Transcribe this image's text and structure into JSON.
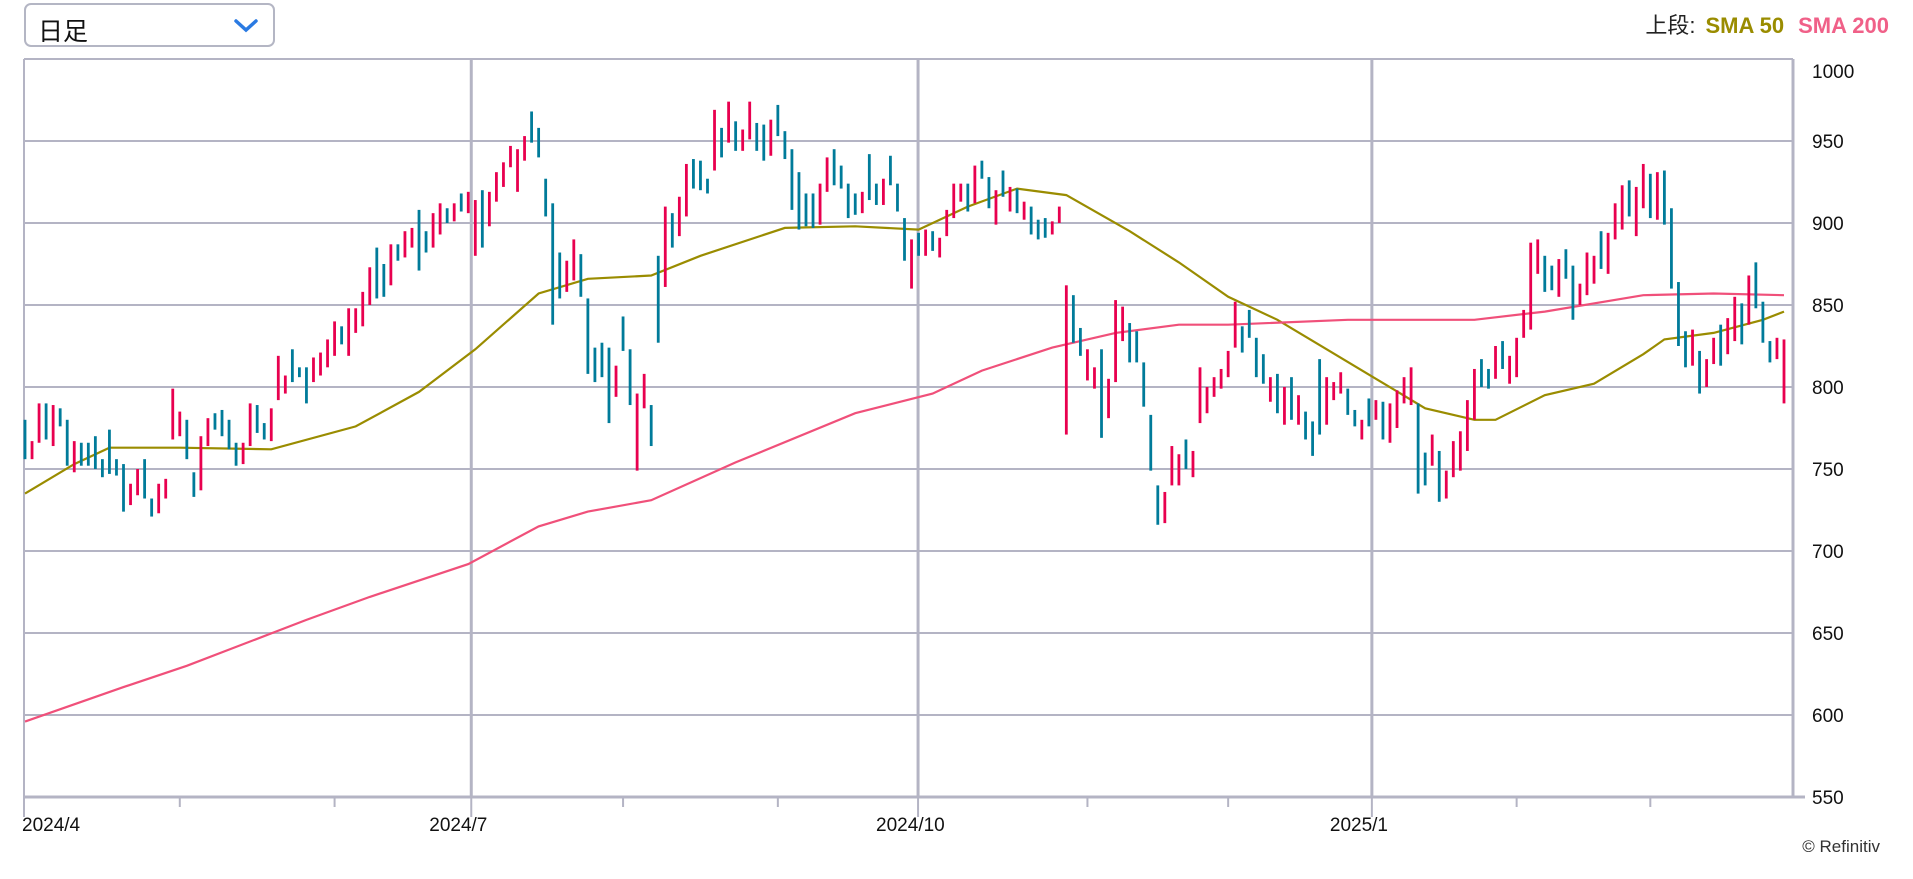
{
  "controls": {
    "period_select": "日足"
  },
  "legend": {
    "label": "上段:",
    "sma50": "SMA 50",
    "sma200": "SMA 200"
  },
  "credit": "© Refinitiv",
  "colors": {
    "up": "#e8004f",
    "down": "#007b9a",
    "sma50": "#9a8c00",
    "sma200": "#f0507a",
    "grid": "#b4b4c4"
  },
  "chart_data": {
    "type": "ohlc-range-bar",
    "ylim": [
      550,
      1000
    ],
    "yticks": [
      "1000",
      "950",
      "900",
      "850",
      "800",
      "750",
      "700",
      "650",
      "600",
      "550"
    ],
    "xticks": [
      {
        "label": "2024/4",
        "bar": 1
      },
      {
        "label": "2024/7",
        "bar": 64
      },
      {
        "label": "2024/10",
        "bar": 127.5
      },
      {
        "label": "2025/1",
        "bar": 192
      }
    ],
    "minor_ticks_bar": [
      23,
      45,
      86,
      108,
      152,
      172,
      213,
      232
    ],
    "bar_format": "[high, low, direction u=up d=down]",
    "bars": [
      [
        780,
        756,
        "d"
      ],
      [
        767,
        756,
        "u"
      ],
      [
        790,
        766,
        "u"
      ],
      [
        790,
        768,
        "d"
      ],
      [
        789,
        764,
        "u"
      ],
      [
        787,
        776,
        "d"
      ],
      [
        780,
        752,
        "d"
      ],
      [
        767,
        748,
        "u"
      ],
      [
        766,
        752,
        "d"
      ],
      [
        766,
        752,
        "d"
      ],
      [
        770,
        750,
        "d"
      ],
      [
        756,
        745,
        "d"
      ],
      [
        774,
        747,
        "d"
      ],
      [
        756,
        746,
        "d"
      ],
      [
        753,
        724,
        "d"
      ],
      [
        741,
        728,
        "u"
      ],
      [
        750,
        734,
        "u"
      ],
      [
        756,
        732,
        "d"
      ],
      [
        732,
        721,
        "d"
      ],
      [
        741,
        723,
        "u"
      ],
      [
        744,
        732,
        "u"
      ],
      [
        799,
        768,
        "u"
      ],
      [
        785,
        770,
        "u"
      ],
      [
        780,
        756,
        "d"
      ],
      [
        748,
        733,
        "d"
      ],
      [
        770,
        737,
        "u"
      ],
      [
        781,
        764,
        "u"
      ],
      [
        784,
        774,
        "d"
      ],
      [
        786,
        770,
        "d"
      ],
      [
        780,
        762,
        "d"
      ],
      [
        766,
        752,
        "d"
      ],
      [
        766,
        753,
        "u"
      ],
      [
        790,
        764,
        "u"
      ],
      [
        789,
        772,
        "d"
      ],
      [
        778,
        768,
        "d"
      ],
      [
        787,
        767,
        "u"
      ],
      [
        819,
        792,
        "u"
      ],
      [
        807,
        796,
        "u"
      ],
      [
        823,
        803,
        "d"
      ],
      [
        812,
        806,
        "d"
      ],
      [
        812,
        790,
        "d"
      ],
      [
        818,
        803,
        "u"
      ],
      [
        821,
        807,
        "u"
      ],
      [
        829,
        812,
        "u"
      ],
      [
        840,
        819,
        "u"
      ],
      [
        837,
        826,
        "d"
      ],
      [
        848,
        819,
        "u"
      ],
      [
        848,
        833,
        "u"
      ],
      [
        858,
        837,
        "u"
      ],
      [
        873,
        850,
        "u"
      ],
      [
        885,
        854,
        "d"
      ],
      [
        875,
        855,
        "d"
      ],
      [
        887,
        862,
        "u"
      ],
      [
        887,
        877,
        "d"
      ],
      [
        895,
        879,
        "u"
      ],
      [
        897,
        885,
        "u"
      ],
      [
        908,
        871,
        "d"
      ],
      [
        895,
        882,
        "d"
      ],
      [
        906,
        885,
        "u"
      ],
      [
        912,
        893,
        "u"
      ],
      [
        909,
        900,
        "d"
      ],
      [
        912,
        901,
        "u"
      ],
      [
        918,
        907,
        "d"
      ],
      [
        919,
        906,
        "u"
      ],
      [
        914,
        880,
        "u"
      ],
      [
        920,
        885,
        "d"
      ],
      [
        919,
        898,
        "u"
      ],
      [
        931,
        913,
        "u"
      ],
      [
        937,
        922,
        "u"
      ],
      [
        947,
        934,
        "u"
      ],
      [
        945,
        919,
        "u"
      ],
      [
        953,
        938,
        "u"
      ],
      [
        968,
        949,
        "d"
      ],
      [
        958,
        940,
        "d"
      ],
      [
        927,
        904,
        "d"
      ],
      [
        912,
        838,
        "d"
      ],
      [
        882,
        854,
        "d"
      ],
      [
        877,
        858,
        "u"
      ],
      [
        890,
        865,
        "u"
      ],
      [
        881,
        855,
        "d"
      ],
      [
        854,
        808,
        "d"
      ],
      [
        824,
        803,
        "d"
      ],
      [
        827,
        806,
        "d"
      ],
      [
        824,
        778,
        "d"
      ],
      [
        813,
        794,
        "u"
      ],
      [
        843,
        822,
        "d"
      ],
      [
        823,
        789,
        "d"
      ],
      [
        796,
        749,
        "u"
      ],
      [
        808,
        787,
        "u"
      ],
      [
        789,
        764,
        "d"
      ],
      [
        880,
        827,
        "d"
      ],
      [
        910,
        861,
        "u"
      ],
      [
        906,
        885,
        "d"
      ],
      [
        916,
        892,
        "u"
      ],
      [
        936,
        904,
        "u"
      ],
      [
        939,
        921,
        "d"
      ],
      [
        938,
        920,
        "d"
      ],
      [
        927,
        918,
        "d"
      ],
      [
        969,
        932,
        "u"
      ],
      [
        958,
        940,
        "d"
      ],
      [
        974,
        949,
        "u"
      ],
      [
        962,
        944,
        "d"
      ],
      [
        957,
        944,
        "u"
      ],
      [
        974,
        951,
        "u"
      ],
      [
        961,
        944,
        "d"
      ],
      [
        960,
        938,
        "d"
      ],
      [
        963,
        941,
        "u"
      ],
      [
        972,
        953,
        "d"
      ],
      [
        956,
        939,
        "d"
      ],
      [
        945,
        908,
        "d"
      ],
      [
        931,
        896,
        "d"
      ],
      [
        918,
        898,
        "d"
      ],
      [
        918,
        897,
        "d"
      ],
      [
        924,
        899,
        "u"
      ],
      [
        940,
        919,
        "u"
      ],
      [
        945,
        923,
        "d"
      ],
      [
        935,
        921,
        "d"
      ],
      [
        924,
        903,
        "d"
      ],
      [
        918,
        905,
        "d"
      ],
      [
        919,
        906,
        "u"
      ],
      [
        942,
        914,
        "d"
      ],
      [
        924,
        911,
        "d"
      ],
      [
        927,
        911,
        "u"
      ],
      [
        941,
        923,
        "d"
      ],
      [
        924,
        907,
        "d"
      ],
      [
        903,
        877,
        "d"
      ],
      [
        890,
        860,
        "u"
      ],
      [
        894,
        880,
        "d"
      ],
      [
        896,
        880,
        "u"
      ],
      [
        895,
        883,
        "d"
      ],
      [
        891,
        879,
        "u"
      ],
      [
        908,
        892,
        "u"
      ],
      [
        924,
        903,
        "u"
      ],
      [
        924,
        913,
        "u"
      ],
      [
        924,
        907,
        "d"
      ],
      [
        935,
        912,
        "u"
      ],
      [
        938,
        927,
        "d"
      ],
      [
        928,
        909,
        "d"
      ],
      [
        920,
        899,
        "u"
      ],
      [
        932,
        916,
        "d"
      ],
      [
        922,
        907,
        "u"
      ],
      [
        921,
        906,
        "d"
      ],
      [
        913,
        902,
        "u"
      ],
      [
        910,
        893,
        "d"
      ],
      [
        902,
        890,
        "d"
      ],
      [
        903,
        891,
        "d"
      ],
      [
        901,
        893,
        "u"
      ],
      [
        910,
        900,
        "u"
      ],
      [
        862,
        771,
        "u"
      ],
      [
        856,
        827,
        "d"
      ],
      [
        836,
        819,
        "d"
      ],
      [
        823,
        804,
        "u"
      ],
      [
        812,
        799,
        "u"
      ],
      [
        823,
        769,
        "d"
      ],
      [
        805,
        781,
        "u"
      ],
      [
        853,
        803,
        "u"
      ],
      [
        849,
        828,
        "u"
      ],
      [
        839,
        815,
        "d"
      ],
      [
        834,
        815,
        "d"
      ],
      [
        815,
        788,
        "d"
      ],
      [
        783,
        749,
        "d"
      ],
      [
        740,
        716,
        "d"
      ],
      [
        736,
        717,
        "u"
      ],
      [
        764,
        740,
        "u"
      ],
      [
        759,
        740,
        "u"
      ],
      [
        768,
        750,
        "d"
      ],
      [
        761,
        745,
        "u"
      ],
      [
        812,
        778,
        "u"
      ],
      [
        800,
        784,
        "u"
      ],
      [
        806,
        794,
        "u"
      ],
      [
        811,
        799,
        "u"
      ],
      [
        822,
        806,
        "u"
      ],
      [
        852,
        824,
        "u"
      ],
      [
        837,
        821,
        "d"
      ],
      [
        847,
        830,
        "d"
      ],
      [
        830,
        806,
        "d"
      ],
      [
        820,
        802,
        "d"
      ],
      [
        806,
        791,
        "u"
      ],
      [
        808,
        784,
        "d"
      ],
      [
        800,
        777,
        "u"
      ],
      [
        806,
        780,
        "d"
      ],
      [
        795,
        777,
        "u"
      ],
      [
        785,
        768,
        "d"
      ],
      [
        779,
        758,
        "d"
      ],
      [
        817,
        771,
        "d"
      ],
      [
        806,
        777,
        "u"
      ],
      [
        803,
        792,
        "u"
      ],
      [
        809,
        796,
        "u"
      ],
      [
        799,
        783,
        "d"
      ],
      [
        786,
        776,
        "d"
      ],
      [
        780,
        768,
        "u"
      ],
      [
        793,
        776,
        "d"
      ],
      [
        792,
        780,
        "u"
      ],
      [
        791,
        768,
        "d"
      ],
      [
        790,
        766,
        "u"
      ],
      [
        798,
        775,
        "u"
      ],
      [
        806,
        790,
        "u"
      ],
      [
        812,
        789,
        "u"
      ],
      [
        790,
        735,
        "d"
      ],
      [
        760,
        740,
        "d"
      ],
      [
        771,
        752,
        "u"
      ],
      [
        761,
        730,
        "d"
      ],
      [
        749,
        732,
        "u"
      ],
      [
        767,
        745,
        "u"
      ],
      [
        773,
        749,
        "u"
      ],
      [
        792,
        761,
        "u"
      ],
      [
        811,
        780,
        "u"
      ],
      [
        817,
        800,
        "d"
      ],
      [
        811,
        799,
        "d"
      ],
      [
        825,
        805,
        "u"
      ],
      [
        828,
        811,
        "d"
      ],
      [
        819,
        802,
        "u"
      ],
      [
        830,
        806,
        "u"
      ],
      [
        847,
        830,
        "u"
      ],
      [
        888,
        835,
        "u"
      ],
      [
        890,
        869,
        "u"
      ],
      [
        880,
        858,
        "d"
      ],
      [
        874,
        859,
        "d"
      ],
      [
        878,
        855,
        "u"
      ],
      [
        884,
        866,
        "d"
      ],
      [
        874,
        841,
        "d"
      ],
      [
        863,
        850,
        "u"
      ],
      [
        882,
        856,
        "u"
      ],
      [
        880,
        863,
        "u"
      ],
      [
        895,
        872,
        "d"
      ],
      [
        894,
        869,
        "u"
      ],
      [
        912,
        890,
        "u"
      ],
      [
        923,
        896,
        "u"
      ],
      [
        926,
        904,
        "d"
      ],
      [
        922,
        892,
        "u"
      ],
      [
        936,
        909,
        "u"
      ],
      [
        930,
        903,
        "d"
      ],
      [
        931,
        902,
        "u"
      ],
      [
        932,
        899,
        "d"
      ],
      [
        909,
        860,
        "d"
      ],
      [
        864,
        825,
        "d"
      ],
      [
        834,
        812,
        "d"
      ],
      [
        835,
        813,
        "u"
      ],
      [
        822,
        796,
        "d"
      ],
      [
        817,
        800,
        "u"
      ],
      [
        830,
        814,
        "u"
      ],
      [
        838,
        813,
        "d"
      ],
      [
        842,
        820,
        "u"
      ],
      [
        855,
        828,
        "u"
      ],
      [
        851,
        826,
        "d"
      ],
      [
        868,
        838,
        "u"
      ],
      [
        876,
        848,
        "d"
      ],
      [
        852,
        827,
        "d"
      ],
      [
        828,
        815,
        "d"
      ],
      [
        830,
        817,
        "u"
      ],
      [
        829,
        790,
        "u"
      ]
    ],
    "series": [
      {
        "name": "SMA 50",
        "points": [
          [
            1,
            735
          ],
          [
            8,
            753
          ],
          [
            13,
            763
          ],
          [
            23,
            763
          ],
          [
            36,
            762
          ],
          [
            48,
            776
          ],
          [
            57,
            797
          ],
          [
            65,
            823
          ],
          [
            74,
            857
          ],
          [
            81,
            866
          ],
          [
            90,
            868
          ],
          [
            97,
            880
          ],
          [
            109,
            897
          ],
          [
            119,
            898
          ],
          [
            128,
            896
          ],
          [
            135,
            910
          ],
          [
            142,
            921
          ],
          [
            149,
            917
          ],
          [
            158,
            895
          ],
          [
            165,
            876
          ],
          [
            172,
            855
          ],
          [
            179,
            841
          ],
          [
            186,
            823
          ],
          [
            193,
            805
          ],
          [
            200,
            787
          ],
          [
            207,
            780
          ],
          [
            210,
            780
          ],
          [
            217,
            795
          ],
          [
            224,
            802
          ],
          [
            231,
            820
          ],
          [
            234,
            829
          ],
          [
            241,
            833
          ],
          [
            248,
            841
          ],
          [
            251,
            846
          ]
        ]
      },
      {
        "name": "SMA 200",
        "points": [
          [
            1,
            596
          ],
          [
            15,
            617
          ],
          [
            24,
            630
          ],
          [
            41,
            658
          ],
          [
            50,
            672
          ],
          [
            64,
            692
          ],
          [
            74,
            715
          ],
          [
            81,
            724
          ],
          [
            90,
            731
          ],
          [
            102,
            754
          ],
          [
            119,
            784
          ],
          [
            130,
            796
          ],
          [
            137,
            810
          ],
          [
            147,
            824
          ],
          [
            156,
            833
          ],
          [
            165,
            838
          ],
          [
            172,
            838
          ],
          [
            189,
            841
          ],
          [
            207,
            841
          ],
          [
            217,
            846
          ],
          [
            231,
            856
          ],
          [
            241,
            857
          ],
          [
            251,
            856
          ]
        ]
      }
    ]
  }
}
